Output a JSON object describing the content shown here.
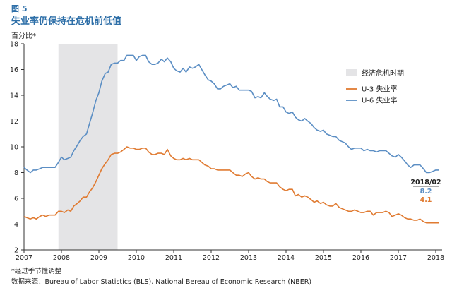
{
  "figure": {
    "label": "图 5",
    "title": "失业率仍保持在危机前低值",
    "unit": "百分比*"
  },
  "notes": {
    "seasonal": "*经过季节性调整",
    "source": "数据来源：Bureau of Labor Statistics (BLS), National Bereau of Economic Research (NBER)"
  },
  "chart_data": {
    "type": "line",
    "xlim": [
      2007,
      2018.17
    ],
    "ylim": [
      2,
      18
    ],
    "x_ticks": [
      "2007",
      "2008",
      "2009",
      "2010",
      "2011",
      "2012",
      "2013",
      "2014",
      "2015",
      "2016",
      "2017",
      "2018"
    ],
    "y_ticks": [
      "2",
      "4",
      "6",
      "8",
      "10",
      "12",
      "14",
      "16",
      "18"
    ],
    "grid": false,
    "legend_position": "right",
    "shaded_region": {
      "name": "经济危机时期",
      "x0": 2007.92,
      "x1": 2009.5,
      "color": "#e4e4e6"
    },
    "series": [
      {
        "name": "U-3 失业率",
        "color": "#e07b32",
        "points": [
          [
            2007.0,
            4.6
          ],
          [
            2007.08,
            4.5
          ],
          [
            2007.17,
            4.4
          ],
          [
            2007.25,
            4.5
          ],
          [
            2007.33,
            4.4
          ],
          [
            2007.42,
            4.6
          ],
          [
            2007.5,
            4.7
          ],
          [
            2007.58,
            4.6
          ],
          [
            2007.67,
            4.7
          ],
          [
            2007.75,
            4.7
          ],
          [
            2007.83,
            4.7
          ],
          [
            2007.92,
            5.0
          ],
          [
            2008.0,
            5.0
          ],
          [
            2008.08,
            4.9
          ],
          [
            2008.17,
            5.1
          ],
          [
            2008.25,
            5.0
          ],
          [
            2008.33,
            5.4
          ],
          [
            2008.42,
            5.6
          ],
          [
            2008.5,
            5.8
          ],
          [
            2008.58,
            6.1
          ],
          [
            2008.67,
            6.1
          ],
          [
            2008.75,
            6.5
          ],
          [
            2008.83,
            6.8
          ],
          [
            2008.92,
            7.3
          ],
          [
            2009.0,
            7.8
          ],
          [
            2009.08,
            8.3
          ],
          [
            2009.17,
            8.7
          ],
          [
            2009.25,
            9.0
          ],
          [
            2009.33,
            9.4
          ],
          [
            2009.42,
            9.5
          ],
          [
            2009.5,
            9.5
          ],
          [
            2009.58,
            9.6
          ],
          [
            2009.67,
            9.8
          ],
          [
            2009.75,
            10.0
          ],
          [
            2009.83,
            9.9
          ],
          [
            2009.92,
            9.9
          ],
          [
            2010.0,
            9.8
          ],
          [
            2010.08,
            9.8
          ],
          [
            2010.17,
            9.9
          ],
          [
            2010.25,
            9.9
          ],
          [
            2010.33,
            9.6
          ],
          [
            2010.42,
            9.4
          ],
          [
            2010.5,
            9.4
          ],
          [
            2010.58,
            9.5
          ],
          [
            2010.67,
            9.5
          ],
          [
            2010.75,
            9.4
          ],
          [
            2010.83,
            9.8
          ],
          [
            2010.92,
            9.3
          ],
          [
            2011.0,
            9.1
          ],
          [
            2011.08,
            9.0
          ],
          [
            2011.17,
            9.0
          ],
          [
            2011.25,
            9.1
          ],
          [
            2011.33,
            9.0
          ],
          [
            2011.42,
            9.1
          ],
          [
            2011.5,
            9.0
          ],
          [
            2011.58,
            9.0
          ],
          [
            2011.67,
            9.0
          ],
          [
            2011.75,
            8.8
          ],
          [
            2011.83,
            8.6
          ],
          [
            2011.92,
            8.5
          ],
          [
            2012.0,
            8.3
          ],
          [
            2012.08,
            8.3
          ],
          [
            2012.17,
            8.2
          ],
          [
            2012.25,
            8.2
          ],
          [
            2012.33,
            8.2
          ],
          [
            2012.42,
            8.2
          ],
          [
            2012.5,
            8.2
          ],
          [
            2012.58,
            8.0
          ],
          [
            2012.67,
            7.8
          ],
          [
            2012.75,
            7.8
          ],
          [
            2012.83,
            7.7
          ],
          [
            2012.92,
            7.9
          ],
          [
            2013.0,
            8.0
          ],
          [
            2013.08,
            7.7
          ],
          [
            2013.17,
            7.5
          ],
          [
            2013.25,
            7.6
          ],
          [
            2013.33,
            7.5
          ],
          [
            2013.42,
            7.5
          ],
          [
            2013.5,
            7.3
          ],
          [
            2013.58,
            7.2
          ],
          [
            2013.67,
            7.2
          ],
          [
            2013.75,
            7.2
          ],
          [
            2013.83,
            6.9
          ],
          [
            2013.92,
            6.7
          ],
          [
            2014.0,
            6.6
          ],
          [
            2014.08,
            6.7
          ],
          [
            2014.17,
            6.7
          ],
          [
            2014.25,
            6.2
          ],
          [
            2014.33,
            6.3
          ],
          [
            2014.42,
            6.1
          ],
          [
            2014.5,
            6.2
          ],
          [
            2014.58,
            6.1
          ],
          [
            2014.67,
            5.9
          ],
          [
            2014.75,
            5.7
          ],
          [
            2014.83,
            5.8
          ],
          [
            2014.92,
            5.6
          ],
          [
            2015.0,
            5.7
          ],
          [
            2015.08,
            5.5
          ],
          [
            2015.17,
            5.4
          ],
          [
            2015.25,
            5.4
          ],
          [
            2015.33,
            5.6
          ],
          [
            2015.42,
            5.3
          ],
          [
            2015.5,
            5.2
          ],
          [
            2015.58,
            5.1
          ],
          [
            2015.67,
            5.0
          ],
          [
            2015.75,
            5.0
          ],
          [
            2015.83,
            5.1
          ],
          [
            2015.92,
            5.0
          ],
          [
            2016.0,
            4.9
          ],
          [
            2016.08,
            4.9
          ],
          [
            2016.17,
            5.0
          ],
          [
            2016.25,
            5.0
          ],
          [
            2016.33,
            4.7
          ],
          [
            2016.42,
            4.9
          ],
          [
            2016.5,
            4.9
          ],
          [
            2016.58,
            4.9
          ],
          [
            2016.67,
            5.0
          ],
          [
            2016.75,
            4.9
          ],
          [
            2016.83,
            4.6
          ],
          [
            2016.92,
            4.7
          ],
          [
            2017.0,
            4.8
          ],
          [
            2017.08,
            4.7
          ],
          [
            2017.17,
            4.5
          ],
          [
            2017.25,
            4.4
          ],
          [
            2017.33,
            4.4
          ],
          [
            2017.42,
            4.3
          ],
          [
            2017.5,
            4.3
          ],
          [
            2017.58,
            4.4
          ],
          [
            2017.67,
            4.2
          ],
          [
            2017.75,
            4.1
          ],
          [
            2017.83,
            4.1
          ],
          [
            2017.92,
            4.1
          ],
          [
            2018.0,
            4.1
          ],
          [
            2018.08,
            4.1
          ]
        ]
      },
      {
        "name": "U-6 失业率",
        "color": "#5b8ec4",
        "points": [
          [
            2007.0,
            8.4
          ],
          [
            2007.08,
            8.2
          ],
          [
            2007.17,
            8.0
          ],
          [
            2007.25,
            8.2
          ],
          [
            2007.33,
            8.2
          ],
          [
            2007.42,
            8.3
          ],
          [
            2007.5,
            8.4
          ],
          [
            2007.58,
            8.4
          ],
          [
            2007.67,
            8.4
          ],
          [
            2007.75,
            8.4
          ],
          [
            2007.83,
            8.4
          ],
          [
            2007.92,
            8.8
          ],
          [
            2008.0,
            9.2
          ],
          [
            2008.08,
            9.0
          ],
          [
            2008.17,
            9.1
          ],
          [
            2008.25,
            9.2
          ],
          [
            2008.33,
            9.7
          ],
          [
            2008.42,
            10.1
          ],
          [
            2008.5,
            10.5
          ],
          [
            2008.58,
            10.8
          ],
          [
            2008.67,
            11.0
          ],
          [
            2008.75,
            11.8
          ],
          [
            2008.83,
            12.6
          ],
          [
            2008.92,
            13.6
          ],
          [
            2009.0,
            14.2
          ],
          [
            2009.08,
            15.1
          ],
          [
            2009.17,
            15.7
          ],
          [
            2009.25,
            15.8
          ],
          [
            2009.33,
            16.4
          ],
          [
            2009.42,
            16.5
          ],
          [
            2009.5,
            16.5
          ],
          [
            2009.58,
            16.7
          ],
          [
            2009.67,
            16.7
          ],
          [
            2009.75,
            17.1
          ],
          [
            2009.83,
            17.1
          ],
          [
            2009.92,
            17.1
          ],
          [
            2010.0,
            16.7
          ],
          [
            2010.08,
            17.0
          ],
          [
            2010.17,
            17.1
          ],
          [
            2010.25,
            17.1
          ],
          [
            2010.33,
            16.6
          ],
          [
            2010.42,
            16.4
          ],
          [
            2010.5,
            16.4
          ],
          [
            2010.58,
            16.5
          ],
          [
            2010.67,
            16.8
          ],
          [
            2010.75,
            16.6
          ],
          [
            2010.83,
            16.9
          ],
          [
            2010.92,
            16.6
          ],
          [
            2011.0,
            16.1
          ],
          [
            2011.08,
            15.9
          ],
          [
            2011.17,
            15.8
          ],
          [
            2011.25,
            16.1
          ],
          [
            2011.33,
            15.8
          ],
          [
            2011.42,
            16.2
          ],
          [
            2011.5,
            16.1
          ],
          [
            2011.58,
            16.2
          ],
          [
            2011.67,
            16.4
          ],
          [
            2011.75,
            16.0
          ],
          [
            2011.83,
            15.6
          ],
          [
            2011.92,
            15.2
          ],
          [
            2012.0,
            15.1
          ],
          [
            2012.08,
            14.9
          ],
          [
            2012.17,
            14.5
          ],
          [
            2012.25,
            14.5
          ],
          [
            2012.33,
            14.7
          ],
          [
            2012.42,
            14.8
          ],
          [
            2012.5,
            14.9
          ],
          [
            2012.58,
            14.6
          ],
          [
            2012.67,
            14.7
          ],
          [
            2012.75,
            14.4
          ],
          [
            2012.83,
            14.4
          ],
          [
            2012.92,
            14.4
          ],
          [
            2013.0,
            14.4
          ],
          [
            2013.08,
            14.3
          ],
          [
            2013.17,
            13.8
          ],
          [
            2013.25,
            13.9
          ],
          [
            2013.33,
            13.8
          ],
          [
            2013.42,
            14.2
          ],
          [
            2013.5,
            13.9
          ],
          [
            2013.58,
            13.7
          ],
          [
            2013.67,
            13.6
          ],
          [
            2013.75,
            13.7
          ],
          [
            2013.83,
            13.1
          ],
          [
            2013.92,
            13.1
          ],
          [
            2014.0,
            12.7
          ],
          [
            2014.08,
            12.6
          ],
          [
            2014.17,
            12.7
          ],
          [
            2014.25,
            12.3
          ],
          [
            2014.33,
            12.1
          ],
          [
            2014.42,
            12.0
          ],
          [
            2014.5,
            12.2
          ],
          [
            2014.58,
            12.0
          ],
          [
            2014.67,
            11.8
          ],
          [
            2014.75,
            11.5
          ],
          [
            2014.83,
            11.3
          ],
          [
            2014.92,
            11.2
          ],
          [
            2015.0,
            11.3
          ],
          [
            2015.08,
            11.0
          ],
          [
            2015.17,
            10.9
          ],
          [
            2015.25,
            10.8
          ],
          [
            2015.33,
            10.8
          ],
          [
            2015.42,
            10.5
          ],
          [
            2015.5,
            10.4
          ],
          [
            2015.58,
            10.3
          ],
          [
            2015.67,
            10.0
          ],
          [
            2015.75,
            9.8
          ],
          [
            2015.83,
            9.9
          ],
          [
            2015.92,
            9.9
          ],
          [
            2016.0,
            9.9
          ],
          [
            2016.08,
            9.7
          ],
          [
            2016.17,
            9.8
          ],
          [
            2016.25,
            9.7
          ],
          [
            2016.33,
            9.7
          ],
          [
            2016.42,
            9.6
          ],
          [
            2016.5,
            9.7
          ],
          [
            2016.58,
            9.7
          ],
          [
            2016.67,
            9.7
          ],
          [
            2016.75,
            9.5
          ],
          [
            2016.83,
            9.3
          ],
          [
            2016.92,
            9.2
          ],
          [
            2017.0,
            9.4
          ],
          [
            2017.08,
            9.2
          ],
          [
            2017.17,
            8.9
          ],
          [
            2017.25,
            8.6
          ],
          [
            2017.33,
            8.4
          ],
          [
            2017.42,
            8.6
          ],
          [
            2017.5,
            8.6
          ],
          [
            2017.58,
            8.6
          ],
          [
            2017.67,
            8.3
          ],
          [
            2017.75,
            8.0
          ],
          [
            2017.83,
            8.0
          ],
          [
            2017.92,
            8.1
          ],
          [
            2018.0,
            8.2
          ],
          [
            2018.08,
            8.2
          ]
        ]
      }
    ],
    "annotation": {
      "date": "2018/02",
      "u6_value": "8.2",
      "u3_value": "4.1"
    }
  }
}
